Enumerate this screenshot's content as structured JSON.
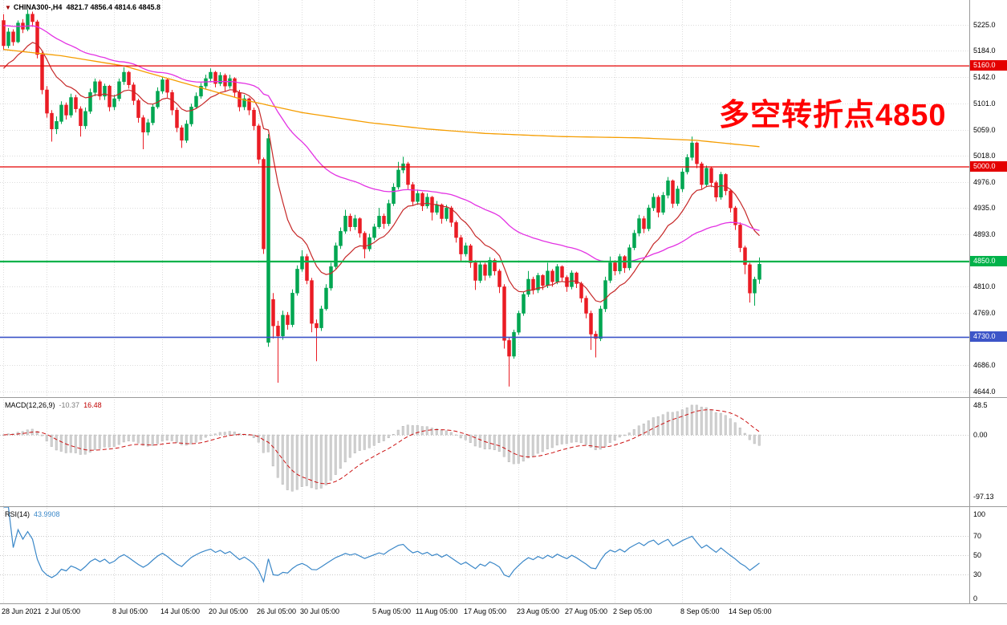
{
  "header": {
    "symbol": "CHINA300-,H4",
    "ohlc": "4821.7 4856.4 4814.6 4845.8"
  },
  "icons": {
    "symbol_marker": "▼"
  },
  "annotation": {
    "text": "多空转折点4850",
    "color": "#ff0000"
  },
  "colors": {
    "up": "#00a651",
    "down": "#ea1c24",
    "macd_hist": "#d2d2d2",
    "macd_signal": "#cc1111",
    "rsi_line": "#3a87c8",
    "grid": "#dcdcdc",
    "axis_text": "#000000",
    "separator": "#9a9a9a",
    "background": "#ffffff"
  },
  "chart_data": {
    "type": "candlestick",
    "symbol": "CHINA300-",
    "timeframe": "H4",
    "title": "CHINA300-,H4",
    "grid": true,
    "last_ohlc": {
      "open": 4821.7,
      "high": 4856.4,
      "low": 4814.6,
      "close": 4845.8
    },
    "price_axis": {
      "values": [
        5225,
        5184,
        5142,
        5101,
        5059,
        5018,
        4976,
        4935,
        4893,
        4810,
        4769,
        4686,
        4644
      ],
      "ylim": [
        4635,
        5264
      ]
    },
    "levels": [
      {
        "value": 5160,
        "label": "5160.0",
        "color": "#e40000",
        "width": 1.3
      },
      {
        "value": 5000,
        "label": "5000.0",
        "color": "#e40000",
        "width": 1.3
      },
      {
        "value": 4850,
        "label": "4850.0",
        "color": "#00b24a",
        "width": 2.2
      },
      {
        "value": 4730,
        "label": "4730.0",
        "color": "#3c55c8",
        "width": 1.6
      }
    ],
    "time_labels": [
      {
        "i": 0,
        "t": "28 Jun 2021"
      },
      {
        "i": 9,
        "t": "2 Jul 05:00"
      },
      {
        "i": 23,
        "t": "8 Jul 05:00"
      },
      {
        "i": 33,
        "t": "14 Jul 05:00"
      },
      {
        "i": 43,
        "t": "20 Jul 05:00"
      },
      {
        "i": 53,
        "t": "26 Jul 05:00"
      },
      {
        "i": 62,
        "t": "30 Jul 05:00"
      },
      {
        "i": 77,
        "t": "5 Aug 05:00"
      },
      {
        "i": 86,
        "t": "11 Aug 05:00"
      },
      {
        "i": 96,
        "t": "17 Aug 05:00"
      },
      {
        "i": 107,
        "t": "23 Aug 05:00"
      },
      {
        "i": 117,
        "t": "27 Aug 05:00"
      },
      {
        "i": 127,
        "t": "2 Sep 05:00"
      },
      {
        "i": 141,
        "t": "8 Sep 05:00"
      },
      {
        "i": 151,
        "t": "14 Sep 05:00"
      }
    ],
    "ma": {
      "fast": {
        "period": 13,
        "seed": 5150,
        "color": "#c62828"
      },
      "mid": {
        "period": 55,
        "seed": 5225,
        "color": "#e332e3"
      },
      "slow": {
        "color": "#f59d00",
        "anchors": [
          [
            0,
            5186
          ],
          [
            12,
            5176
          ],
          [
            25,
            5160
          ],
          [
            36,
            5136
          ],
          [
            50,
            5106
          ],
          [
            62,
            5086
          ],
          [
            76,
            5070
          ],
          [
            88,
            5060
          ],
          [
            100,
            5053
          ],
          [
            116,
            5048
          ],
          [
            132,
            5046
          ],
          [
            144,
            5042
          ],
          [
            157,
            5032
          ]
        ]
      }
    },
    "indicators": {
      "macd": {
        "label": "MACD(12,26,9)",
        "main_value": "-10.37",
        "signal_value": "16.48",
        "axis": {
          "top": "48.5",
          "zero": "0.00",
          "bottom": "-97.13"
        },
        "ylim": [
          -97.13,
          48.5
        ]
      },
      "rsi": {
        "label": "RSI(14)",
        "value": "43.9908",
        "levels": [
          70,
          50,
          30
        ],
        "axis": [
          "100",
          "70",
          "50",
          "30",
          "0"
        ],
        "ylim": [
          0,
          100
        ]
      }
    },
    "candles": [
      [
        5232,
        5242,
        5185,
        5192
      ],
      [
        5192,
        5220,
        5188,
        5214
      ],
      [
        5214,
        5218,
        5192,
        5198
      ],
      [
        5198,
        5232,
        5196,
        5228
      ],
      [
        5228,
        5234,
        5212,
        5218
      ],
      [
        5218,
        5249,
        5215,
        5242
      ],
      [
        5242,
        5246,
        5222,
        5230
      ],
      [
        5230,
        5233,
        5172,
        5178
      ],
      [
        5178,
        5182,
        5115,
        5122
      ],
      [
        5122,
        5128,
        5078,
        5085
      ],
      [
        5085,
        5090,
        5040,
        5060
      ],
      [
        5060,
        5080,
        5052,
        5072
      ],
      [
        5072,
        5104,
        5068,
        5098
      ],
      [
        5098,
        5102,
        5075,
        5082
      ],
      [
        5082,
        5116,
        5078,
        5110
      ],
      [
        5110,
        5114,
        5086,
        5092
      ],
      [
        5092,
        5096,
        5048,
        5065
      ],
      [
        5065,
        5094,
        5060,
        5088
      ],
      [
        5088,
        5124,
        5084,
        5118
      ],
      [
        5118,
        5140,
        5112,
        5135
      ],
      [
        5135,
        5138,
        5106,
        5112
      ],
      [
        5112,
        5132,
        5106,
        5128
      ],
      [
        5128,
        5130,
        5088,
        5095
      ],
      [
        5095,
        5114,
        5090,
        5108
      ],
      [
        5108,
        5140,
        5104,
        5135
      ],
      [
        5135,
        5158,
        5130,
        5150
      ],
      [
        5150,
        5152,
        5124,
        5130
      ],
      [
        5130,
        5134,
        5098,
        5105
      ],
      [
        5105,
        5108,
        5070,
        5078
      ],
      [
        5078,
        5082,
        5028,
        5055
      ],
      [
        5055,
        5076,
        5050,
        5070
      ],
      [
        5070,
        5100,
        5066,
        5095
      ],
      [
        5095,
        5126,
        5092,
        5120
      ],
      [
        5120,
        5143,
        5116,
        5138
      ],
      [
        5138,
        5140,
        5110,
        5118
      ],
      [
        5118,
        5122,
        5082,
        5090
      ],
      [
        5090,
        5094,
        5055,
        5062
      ],
      [
        5062,
        5066,
        5030,
        5042
      ],
      [
        5042,
        5074,
        5038,
        5068
      ],
      [
        5068,
        5100,
        5064,
        5095
      ],
      [
        5095,
        5118,
        5092,
        5112
      ],
      [
        5112,
        5133,
        5108,
        5128
      ],
      [
        5128,
        5146,
        5124,
        5140
      ],
      [
        5140,
        5156,
        5134,
        5150
      ],
      [
        5150,
        5152,
        5126,
        5132
      ],
      [
        5132,
        5150,
        5128,
        5145
      ],
      [
        5145,
        5148,
        5120,
        5128
      ],
      [
        5128,
        5146,
        5124,
        5140
      ],
      [
        5140,
        5142,
        5110,
        5118
      ],
      [
        5118,
        5122,
        5088,
        5095
      ],
      [
        5095,
        5114,
        5090,
        5108
      ],
      [
        5108,
        5110,
        5082,
        5090
      ],
      [
        5090,
        5094,
        5058,
        5065
      ],
      [
        5065,
        5068,
        5005,
        5012
      ],
      [
        5012,
        5015,
        4862,
        4870
      ],
      [
        4722,
        5052,
        4715,
        5045
      ],
      [
        4790,
        4800,
        4728,
        4748
      ],
      [
        4748,
        4756,
        4658,
        4732
      ],
      [
        4732,
        4772,
        4726,
        4765
      ],
      [
        4765,
        4770,
        4742,
        4750
      ],
      [
        4750,
        4806,
        4746,
        4800
      ],
      [
        4800,
        4844,
        4796,
        4838
      ],
      [
        4838,
        4868,
        4834,
        4858
      ],
      [
        4858,
        4862,
        4814,
        4820
      ],
      [
        4820,
        4824,
        4738,
        4752
      ],
      [
        4752,
        4758,
        4692,
        4745
      ],
      [
        4745,
        4780,
        4740,
        4775
      ],
      [
        4775,
        4814,
        4772,
        4808
      ],
      [
        4808,
        4848,
        4804,
        4842
      ],
      [
        4842,
        4880,
        4838,
        4875
      ],
      [
        4875,
        4904,
        4870,
        4898
      ],
      [
        4898,
        4932,
        4894,
        4922
      ],
      [
        4922,
        4926,
        4898,
        4905
      ],
      [
        4905,
        4924,
        4900,
        4918
      ],
      [
        4918,
        4920,
        4888,
        4895
      ],
      [
        4895,
        4898,
        4855,
        4870
      ],
      [
        4870,
        4894,
        4866,
        4888
      ],
      [
        4888,
        4910,
        4884,
        4905
      ],
      [
        4905,
        4935,
        4902,
        4922
      ],
      [
        4922,
        4926,
        4902,
        4910
      ],
      [
        4910,
        4948,
        4906,
        4942
      ],
      [
        4942,
        4974,
        4938,
        4968
      ],
      [
        4968,
        5008,
        4964,
        4995
      ],
      [
        4995,
        5016,
        4990,
        5005
      ],
      [
        5005,
        5008,
        4965,
        4972
      ],
      [
        4972,
        4976,
        4938,
        4945
      ],
      [
        4945,
        4964,
        4940,
        4958
      ],
      [
        4958,
        4960,
        4930,
        4938
      ],
      [
        4938,
        4958,
        4934,
        4952
      ],
      [
        4952,
        4954,
        4915,
        4928
      ],
      [
        4928,
        4946,
        4924,
        4940
      ],
      [
        4940,
        4942,
        4910,
        4918
      ],
      [
        4918,
        4940,
        4914,
        4935
      ],
      [
        4935,
        4938,
        4905,
        4912
      ],
      [
        4912,
        4915,
        4880,
        4888
      ],
      [
        4888,
        4892,
        4850,
        4862
      ],
      [
        4862,
        4880,
        4858,
        4875
      ],
      [
        4875,
        4878,
        4840,
        4848
      ],
      [
        4848,
        4852,
        4805,
        4820
      ],
      [
        4820,
        4850,
        4816,
        4845
      ],
      [
        4845,
        4848,
        4820,
        4828
      ],
      [
        4828,
        4857,
        4824,
        4852
      ],
      [
        4852,
        4855,
        4828,
        4835
      ],
      [
        4835,
        4838,
        4800,
        4810
      ],
      [
        4810,
        4814,
        4712,
        4725
      ],
      [
        4725,
        4730,
        4652,
        4700
      ],
      [
        4700,
        4742,
        4696,
        4738
      ],
      [
        4738,
        4772,
        4734,
        4768
      ],
      [
        4768,
        4802,
        4764,
        4798
      ],
      [
        4798,
        4835,
        4794,
        4822
      ],
      [
        4822,
        4826,
        4798,
        4805
      ],
      [
        4805,
        4832,
        4800,
        4828
      ],
      [
        4828,
        4830,
        4805,
        4812
      ],
      [
        4812,
        4848,
        4808,
        4835
      ],
      [
        4835,
        4838,
        4810,
        4818
      ],
      [
        4818,
        4846,
        4814,
        4842
      ],
      [
        4842,
        4844,
        4818,
        4825
      ],
      [
        4825,
        4828,
        4802,
        4810
      ],
      [
        4810,
        4836,
        4806,
        4832
      ],
      [
        4832,
        4834,
        4808,
        4815
      ],
      [
        4815,
        4818,
        4785,
        4792
      ],
      [
        4792,
        4796,
        4760,
        4768
      ],
      [
        4768,
        4772,
        4710,
        4735
      ],
      [
        4735,
        4740,
        4698,
        4728
      ],
      [
        4728,
        4780,
        4724,
        4775
      ],
      [
        4775,
        4826,
        4770,
        4820
      ],
      [
        4820,
        4858,
        4816,
        4848
      ],
      [
        4848,
        4852,
        4828,
        4835
      ],
      [
        4835,
        4862,
        4830,
        4858
      ],
      [
        4858,
        4860,
        4832,
        4840
      ],
      [
        4840,
        4877,
        4836,
        4872
      ],
      [
        4872,
        4900,
        4868,
        4895
      ],
      [
        4895,
        4924,
        4890,
        4918
      ],
      [
        4918,
        4922,
        4895,
        4902
      ],
      [
        4902,
        4940,
        4898,
        4935
      ],
      [
        4935,
        4958,
        4930,
        4952
      ],
      [
        4952,
        4955,
        4920,
        4928
      ],
      [
        4928,
        4960,
        4924,
        4955
      ],
      [
        4955,
        4984,
        4950,
        4978
      ],
      [
        4978,
        4980,
        4935,
        4942
      ],
      [
        4942,
        4970,
        4938,
        4965
      ],
      [
        4965,
        4998,
        4960,
        4992
      ],
      [
        4992,
        5020,
        4988,
        5015
      ],
      [
        5015,
        5048,
        5010,
        5038
      ],
      [
        5038,
        5040,
        4998,
        5005
      ],
      [
        5005,
        5008,
        4965,
        4972
      ],
      [
        4972,
        5002,
        4968,
        4998
      ],
      [
        4998,
        5000,
        4968,
        4975
      ],
      [
        4975,
        4978,
        4945,
        4952
      ],
      [
        4952,
        4992,
        4948,
        4988
      ],
      [
        4988,
        4990,
        4955,
        4962
      ],
      [
        4962,
        4965,
        4928,
        4935
      ],
      [
        4935,
        4938,
        4900,
        4908
      ],
      [
        4908,
        4912,
        4865,
        4872
      ],
      [
        4872,
        4875,
        4830,
        4845
      ],
      [
        4845,
        4848,
        4785,
        4800
      ],
      [
        4800,
        4826,
        4780,
        4822
      ],
      [
        4821.7,
        4856.4,
        4814.6,
        4845.8
      ]
    ]
  }
}
